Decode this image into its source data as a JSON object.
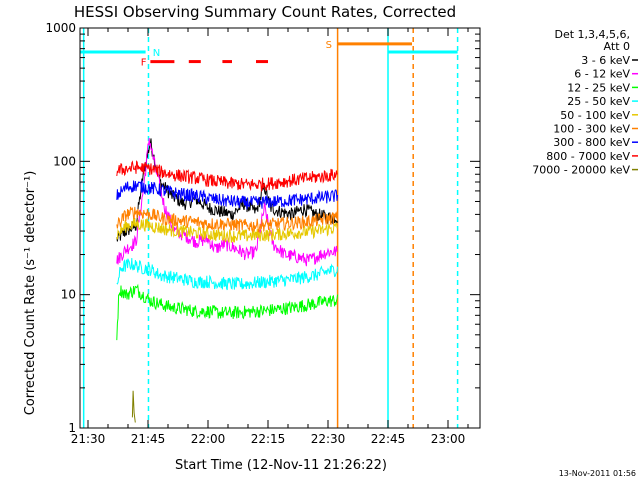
{
  "chart_data": {
    "type": "line",
    "title": "HESSI Observing Summary Count Rates, Corrected",
    "xlabel": "Start Time (12-Nov-11 21:26:22)",
    "ylabel": "Corrected Count Rate (s⁻¹ detector⁻¹)",
    "yscale": "log",
    "ylim": [
      1,
      1000
    ],
    "xlim": [
      21.4667,
      23.1333
    ],
    "x_ticks": [
      {
        "value": 21.5,
        "label": "21:30"
      },
      {
        "value": 21.75,
        "label": "21:45"
      },
      {
        "value": 22.0,
        "label": "22:00"
      },
      {
        "value": 22.25,
        "label": "22:15"
      },
      {
        "value": 22.5,
        "label": "22:30"
      },
      {
        "value": 22.75,
        "label": "22:45"
      },
      {
        "value": 23.0,
        "label": "23:00"
      }
    ],
    "y_ticks": [
      {
        "value": 1,
        "label": "1"
      },
      {
        "value": 10,
        "label": "10"
      },
      {
        "value": 100,
        "label": "100"
      },
      {
        "value": 1000,
        "label": "1000"
      }
    ],
    "legend": {
      "placement": "right",
      "header": [
        "Det 1,3,4,5,6,",
        "Att 0"
      ]
    },
    "series": [
      {
        "name": "3 - 6 keV",
        "color": "#000000",
        "start": 21.62,
        "end": 22.54,
        "points": [
          [
            21.62,
            26
          ],
          [
            21.66,
            30
          ],
          [
            21.7,
            33
          ],
          [
            21.73,
            80
          ],
          [
            21.76,
            140
          ],
          [
            21.8,
            70
          ],
          [
            21.85,
            55
          ],
          [
            21.9,
            48
          ],
          [
            21.95,
            52
          ],
          [
            22.0,
            45
          ],
          [
            22.05,
            42
          ],
          [
            22.1,
            40
          ],
          [
            22.15,
            48
          ],
          [
            22.2,
            42
          ],
          [
            22.235,
            65
          ],
          [
            22.26,
            45
          ],
          [
            22.3,
            42
          ],
          [
            22.35,
            40
          ],
          [
            22.4,
            44
          ],
          [
            22.45,
            40
          ],
          [
            22.5,
            38
          ],
          [
            22.54,
            38
          ]
        ]
      },
      {
        "name": "6 - 12 keV",
        "color": "#ff00ff",
        "start": 21.62,
        "end": 22.54,
        "points": [
          [
            21.62,
            18
          ],
          [
            21.66,
            22
          ],
          [
            21.7,
            25
          ],
          [
            21.73,
            60
          ],
          [
            21.755,
            150
          ],
          [
            21.78,
            90
          ],
          [
            21.82,
            45
          ],
          [
            21.86,
            30
          ],
          [
            21.9,
            28
          ],
          [
            21.95,
            25
          ],
          [
            22.0,
            26
          ],
          [
            22.03,
            22
          ],
          [
            22.07,
            24
          ],
          [
            22.12,
            22
          ],
          [
            22.16,
            20
          ],
          [
            22.2,
            21
          ],
          [
            22.235,
            45
          ],
          [
            22.27,
            24
          ],
          [
            22.32,
            20
          ],
          [
            22.38,
            19
          ],
          [
            22.42,
            18
          ],
          [
            22.47,
            20
          ],
          [
            22.5,
            21
          ],
          [
            22.54,
            21
          ]
        ]
      },
      {
        "name": "12 - 25 keV",
        "color": "#00ff00",
        "start": 21.62,
        "end": 22.54,
        "points": [
          [
            21.62,
            5
          ],
          [
            21.63,
            11
          ],
          [
            21.66,
            10
          ],
          [
            21.7,
            11
          ],
          [
            21.76,
            9
          ],
          [
            21.8,
            8.5
          ],
          [
            21.85,
            8
          ],
          [
            21.9,
            7.8
          ],
          [
            21.95,
            7.5
          ],
          [
            22.0,
            7.5
          ],
          [
            22.05,
            7.3
          ],
          [
            22.1,
            7.3
          ],
          [
            22.15,
            7.4
          ],
          [
            22.2,
            7.5
          ],
          [
            22.25,
            7.6
          ],
          [
            22.3,
            7.8
          ],
          [
            22.35,
            8
          ],
          [
            22.4,
            8.3
          ],
          [
            22.45,
            8.6
          ],
          [
            22.5,
            9
          ],
          [
            22.54,
            9
          ]
        ]
      },
      {
        "name": "25 - 50 keV",
        "color": "#00ffff",
        "start": 21.62,
        "end": 22.54,
        "points": [
          [
            21.62,
            12
          ],
          [
            21.64,
            16
          ],
          [
            21.68,
            17
          ],
          [
            21.72,
            16
          ],
          [
            21.76,
            15.5
          ],
          [
            21.8,
            14
          ],
          [
            21.85,
            13.5
          ],
          [
            21.9,
            13
          ],
          [
            21.95,
            12.5
          ],
          [
            22.0,
            12.5
          ],
          [
            22.05,
            12.2
          ],
          [
            22.1,
            12
          ],
          [
            22.15,
            12
          ],
          [
            22.2,
            12.3
          ],
          [
            22.25,
            12.5
          ],
          [
            22.3,
            12.8
          ],
          [
            22.35,
            13
          ],
          [
            22.4,
            13.5
          ],
          [
            22.45,
            14
          ],
          [
            22.5,
            15
          ],
          [
            22.54,
            15.5
          ]
        ]
      },
      {
        "name": "50 - 100 keV",
        "color": "#e6c800",
        "start": 21.62,
        "end": 22.54,
        "points": [
          [
            21.62,
            28
          ],
          [
            21.66,
            33
          ],
          [
            21.7,
            34
          ],
          [
            21.76,
            33
          ],
          [
            21.82,
            31
          ],
          [
            21.88,
            30
          ],
          [
            21.95,
            29
          ],
          [
            22.0,
            28.5
          ],
          [
            22.05,
            28
          ],
          [
            22.1,
            27.5
          ],
          [
            22.15,
            27.5
          ],
          [
            22.2,
            28
          ],
          [
            22.25,
            28
          ],
          [
            22.3,
            28.5
          ],
          [
            22.35,
            29
          ],
          [
            22.4,
            29.5
          ],
          [
            22.45,
            30
          ],
          [
            22.5,
            31
          ],
          [
            22.54,
            32
          ]
        ]
      },
      {
        "name": "100 - 300 keV",
        "color": "#ff8000",
        "start": 21.62,
        "end": 22.54,
        "points": [
          [
            21.62,
            33
          ],
          [
            21.66,
            40
          ],
          [
            21.7,
            42
          ],
          [
            21.76,
            40
          ],
          [
            21.82,
            37
          ],
          [
            21.88,
            36
          ],
          [
            21.95,
            35
          ],
          [
            22.0,
            34
          ],
          [
            22.05,
            34
          ],
          [
            22.1,
            33.5
          ],
          [
            22.15,
            33
          ],
          [
            22.2,
            33
          ],
          [
            22.25,
            33.5
          ],
          [
            22.3,
            34
          ],
          [
            22.35,
            34.5
          ],
          [
            22.4,
            35
          ],
          [
            22.45,
            36
          ],
          [
            22.5,
            37
          ],
          [
            22.54,
            38
          ]
        ]
      },
      {
        "name": "300 - 800 keV",
        "color": "#0000ff",
        "start": 21.62,
        "end": 22.54,
        "points": [
          [
            21.62,
            55
          ],
          [
            21.66,
            64
          ],
          [
            21.7,
            66
          ],
          [
            21.76,
            63
          ],
          [
            21.82,
            60
          ],
          [
            21.88,
            57
          ],
          [
            21.95,
            55
          ],
          [
            22.0,
            53
          ],
          [
            22.05,
            51
          ],
          [
            22.1,
            50
          ],
          [
            22.15,
            49
          ],
          [
            22.2,
            49
          ],
          [
            22.25,
            49.5
          ],
          [
            22.3,
            50
          ],
          [
            22.35,
            51
          ],
          [
            22.4,
            52
          ],
          [
            22.45,
            53
          ],
          [
            22.5,
            54
          ],
          [
            22.54,
            55
          ]
        ]
      },
      {
        "name": "800 - 7000 keV",
        "color": "#ff0000",
        "start": 21.62,
        "end": 22.54,
        "points": [
          [
            21.62,
            85
          ],
          [
            21.66,
            88
          ],
          [
            21.7,
            90
          ],
          [
            21.76,
            88
          ],
          [
            21.82,
            82
          ],
          [
            21.88,
            78
          ],
          [
            21.95,
            75
          ],
          [
            22.0,
            72
          ],
          [
            22.05,
            70
          ],
          [
            22.1,
            68
          ],
          [
            22.15,
            67
          ],
          [
            22.2,
            67
          ],
          [
            22.25,
            68
          ],
          [
            22.3,
            70
          ],
          [
            22.35,
            72
          ],
          [
            22.4,
            74
          ],
          [
            22.45,
            76
          ],
          [
            22.5,
            78
          ],
          [
            22.54,
            80
          ]
        ]
      },
      {
        "name": "7000 - 20000 keV",
        "color": "#808000",
        "start": 21.68,
        "end": 21.7,
        "points": [
          [
            21.685,
            1.2
          ],
          [
            21.688,
            1.9
          ],
          [
            21.692,
            1.3
          ],
          [
            21.697,
            1.1
          ]
        ]
      }
    ],
    "event_bars": [
      {
        "label": "N",
        "color": "#00ffff",
        "y": 660,
        "segments": [
          [
            21.4667,
            21.74
          ],
          [
            22.75,
            23.04
          ]
        ],
        "label_at": 21.77
      },
      {
        "label": "F",
        "color": "#ff0000",
        "y": 560,
        "segments": [
          [
            21.76,
            21.86
          ],
          [
            21.92,
            21.97
          ],
          [
            22.06,
            22.1
          ],
          [
            22.2,
            22.25
          ]
        ],
        "label_at": 21.72
      },
      {
        "label": "S",
        "color": "#ff8000",
        "y": 760,
        "segments": [
          [
            22.54,
            22.85
          ]
        ],
        "label_at": 22.49
      }
    ],
    "vertical_markers": [
      {
        "x": 21.482,
        "color": "#00ffff",
        "style": "solid"
      },
      {
        "x": 21.752,
        "color": "#00ffff",
        "style": "dashed"
      },
      {
        "x": 22.54,
        "color": "#ff8000",
        "style": "solid"
      },
      {
        "x": 22.75,
        "color": "#00ffff",
        "style": "solid"
      },
      {
        "x": 22.855,
        "color": "#ff8000",
        "style": "dashed"
      },
      {
        "x": 23.04,
        "color": "#00ffff",
        "style": "dashed"
      }
    ]
  },
  "footer": {
    "timestamp": "13-Nov-2011 01:56"
  }
}
